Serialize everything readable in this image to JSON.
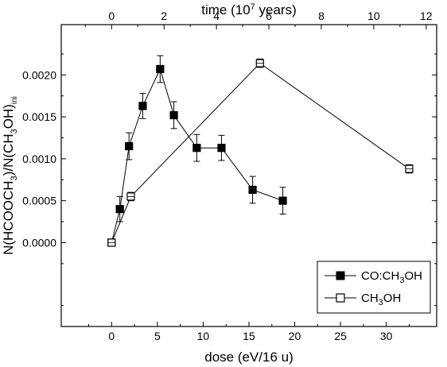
{
  "chart_data": {
    "type": "scatter",
    "xlabel": "dose (eV/16 u)",
    "x2label_main": "time (10",
    "x2label_exp": "7",
    "x2label_tail": " years)",
    "ylabel_prefix": "N(HCOOCH",
    "ylabel_sub1": "3",
    "ylabel_mid": ")/N(CH",
    "ylabel_sub2": "3",
    "ylabel_mid2": "OH)",
    "ylabel_sub3": "ini",
    "xlim": [
      -5.5,
      35.5
    ],
    "ylim": [
      -0.001,
      0.0026
    ],
    "x2lim": [
      -1.92,
      12.4
    ],
    "x_ticks": [
      0,
      5,
      10,
      15,
      20,
      25,
      30
    ],
    "x2_ticks": [
      0,
      2,
      4,
      6,
      8,
      10,
      12
    ],
    "y_ticks": [
      0.0,
      0.0005,
      0.001,
      0.0015,
      0.002
    ],
    "y_tick_labels": [
      "0.0000",
      "0.0005",
      "0.0010",
      "0.0015",
      "0.0020"
    ],
    "legend_position": "bottom-right",
    "series": [
      {
        "name": "CO:CH3OH",
        "legend_main": "CO:CH",
        "legend_sub": "3",
        "legend_tail": "OH",
        "marker": "filled-square",
        "color": "#000000",
        "x": [
          0.0,
          0.9,
          1.9,
          3.4,
          5.3,
          6.8,
          9.3,
          12.0,
          15.4,
          18.7
        ],
        "y": [
          0.0,
          0.0004,
          0.00115,
          0.00163,
          0.00207,
          0.00152,
          0.00113,
          0.00113,
          0.00063,
          0.0005
        ],
        "err": [
          1e-05,
          0.00015,
          0.00016,
          0.00015,
          0.00016,
          0.00016,
          0.00016,
          0.00015,
          0.00016,
          0.00016
        ]
      },
      {
        "name": "CH3OH",
        "legend_main": "CH",
        "legend_sub": "3",
        "legend_tail": "OH",
        "marker": "open-square",
        "color": "#000000",
        "x": [
          0.0,
          2.1,
          16.2,
          32.5
        ],
        "y": [
          0.0,
          0.00055,
          0.00214,
          0.00088
        ],
        "err": [
          1e-05,
          5e-05,
          5e-05,
          5e-05
        ]
      }
    ]
  }
}
